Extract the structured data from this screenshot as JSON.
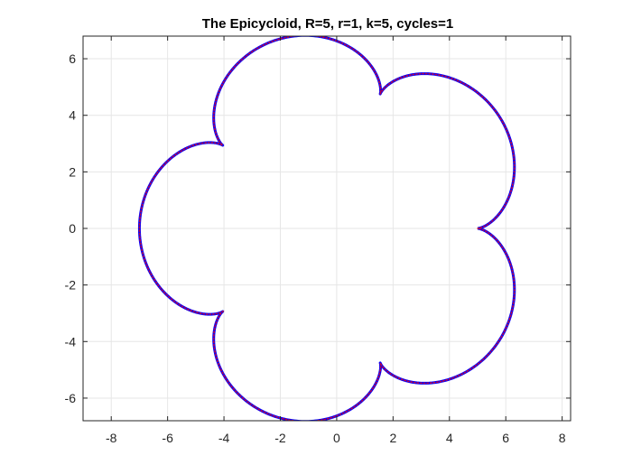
{
  "chart_data": {
    "type": "line",
    "title": "The Epicycloid, R=5, r=1, k=5, cycles=1",
    "xlabel": "",
    "ylabel": "",
    "xlim": [
      -9,
      8.3
    ],
    "ylim": [
      -6.8,
      6.8
    ],
    "xticks": [
      -8,
      -6,
      -4,
      -2,
      0,
      2,
      4,
      6,
      8
    ],
    "yticks": [
      -6,
      -4,
      -2,
      0,
      2,
      4,
      6
    ],
    "xtick_labels": [
      "-8",
      "-6",
      "-4",
      "-2",
      "0",
      "2",
      "4",
      "6",
      "8"
    ],
    "ytick_labels": [
      "-6",
      "-4",
      "-2",
      "0",
      "2",
      "4",
      "6"
    ],
    "grid": true,
    "box": true,
    "curve": {
      "R": 5,
      "r": 1,
      "k": 5,
      "cycles": 1,
      "x_formula": "(R+r)*cos(t) - r*cos((R+r)/r*t)",
      "y_formula": "(R+r)*sin(t) - r*sin((R+r)/r*t)",
      "t_range": [
        0,
        6.283185307
      ]
    },
    "series": [
      {
        "style": "solid",
        "color": "#0000ff"
      },
      {
        "style": "dotted",
        "color": "#ff0000"
      }
    ],
    "colors": {
      "axes": "#262626",
      "grid": "#e6e6e6",
      "line": "#0000ff",
      "dots": "#ff0000"
    }
  }
}
